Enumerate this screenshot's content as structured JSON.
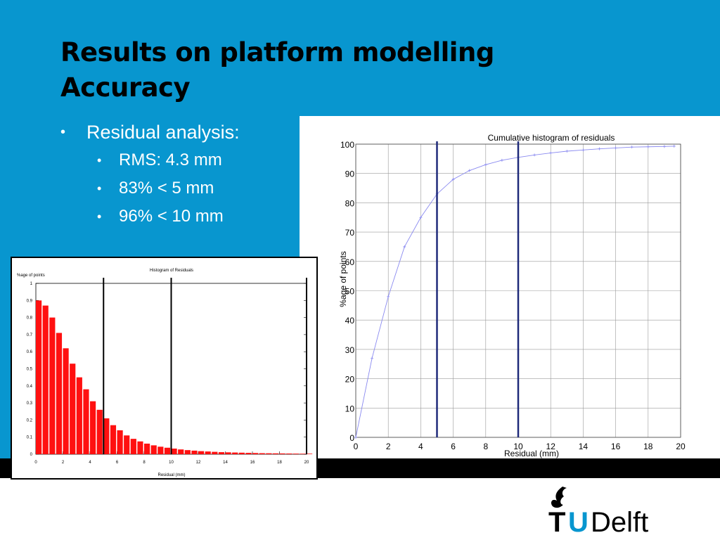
{
  "slide": {
    "title_line1": "Results on platform modelling",
    "title_line2": "Accuracy",
    "bullets": {
      "main": "Residual analysis:",
      "sub": [
        "RMS: 4.3 mm",
        "83% < 5 mm",
        "96% < 10 mm"
      ]
    },
    "colors": {
      "background": "#0896cf",
      "title": "#000000",
      "bullets": "#ffffff"
    }
  },
  "logo": {
    "text": "TUDelft",
    "part1": "T",
    "part2": "U",
    "part3": "Delft",
    "icon": "flame-icon",
    "accent": "#0896cf"
  },
  "chart_data": [
    {
      "type": "line",
      "title": "Cumulative histogram of residuals",
      "xlabel": "Residual (mm)",
      "ylabel": "%age of points",
      "xlim": [
        0,
        20
      ],
      "ylim": [
        0,
        100
      ],
      "xticks": [
        0,
        2,
        4,
        6,
        8,
        10,
        12,
        14,
        16,
        18,
        20
      ],
      "yticks": [
        0,
        10,
        20,
        30,
        40,
        50,
        60,
        70,
        80,
        90,
        100
      ],
      "grid": true,
      "x": [
        0,
        1,
        2,
        3,
        4,
        5,
        6,
        7,
        8,
        9,
        10,
        11,
        12,
        13,
        14,
        15,
        16,
        17,
        18,
        19,
        19.6
      ],
      "y": [
        0,
        27,
        48,
        65,
        75,
        83,
        88,
        91,
        93,
        94.5,
        95.5,
        96.3,
        97,
        97.6,
        98,
        98.4,
        98.7,
        99,
        99.1,
        99.2,
        99.3
      ],
      "vlines": [
        5,
        10
      ],
      "colors": {
        "series": "#8a8af0",
        "vlines": "#1f2a7a",
        "grid": "#9a9a9a"
      }
    },
    {
      "type": "bar",
      "title": "Histogram of Residuals",
      "xlabel": "Residual (mm)",
      "ylabel": "%age of points",
      "xlim": [
        0,
        20
      ],
      "ylim": [
        0,
        1
      ],
      "xticks": [
        0,
        2,
        4,
        6,
        8,
        10,
        12,
        14,
        16,
        18,
        20
      ],
      "yticks": [
        0,
        0.1,
        0.2,
        0.3,
        0.4,
        0.5,
        0.6,
        0.7,
        0.8,
        0.9,
        1
      ],
      "grid": false,
      "x": [
        0,
        0.5,
        1,
        1.5,
        2,
        2.5,
        3,
        3.5,
        4,
        4.5,
        5,
        5.5,
        6,
        6.5,
        7,
        7.5,
        8,
        8.5,
        9,
        9.5,
        10,
        10.5,
        11,
        11.5,
        12,
        12.5,
        13,
        13.5,
        14,
        14.5,
        15,
        15.5,
        16,
        16.5,
        17,
        17.5,
        18,
        18.5,
        19,
        19.5,
        20
      ],
      "values": [
        0.9,
        0.87,
        0.8,
        0.71,
        0.62,
        0.53,
        0.45,
        0.38,
        0.31,
        0.26,
        0.21,
        0.17,
        0.14,
        0.11,
        0.09,
        0.075,
        0.062,
        0.052,
        0.044,
        0.038,
        0.033,
        0.028,
        0.024,
        0.021,
        0.018,
        0.016,
        0.014,
        0.012,
        0.011,
        0.01,
        0.009,
        0.008,
        0.007,
        0.006,
        0.0055,
        0.005,
        0.0045,
        0.004,
        0.0035,
        0.003,
        0.003
      ],
      "vlines": [
        5,
        10,
        20
      ],
      "colors": {
        "bars": "#ff1010",
        "vlines": "#000000"
      }
    }
  ]
}
